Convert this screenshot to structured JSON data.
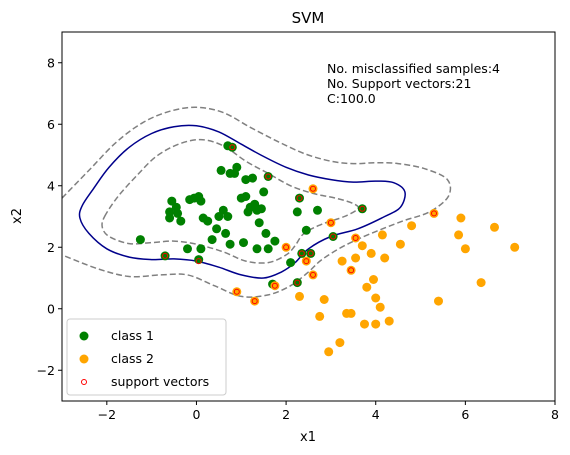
{
  "chart_data": {
    "type": "scatter",
    "title": "SVM",
    "xlabel": "x1",
    "ylabel": "x2",
    "xlim": [
      -3,
      8
    ],
    "ylim": [
      -3,
      9
    ],
    "xticks": [
      -2,
      0,
      2,
      4,
      6,
      8
    ],
    "yticks": [
      -2,
      0,
      2,
      4,
      6,
      8
    ],
    "grid": false,
    "legend": {
      "placement": "lower-left",
      "entries": [
        "class 1",
        "class 2",
        "support vectors"
      ]
    },
    "annotation": [
      "No. misclassified samples:4",
      "No. Support vectors:21",
      "C:100.0"
    ],
    "colors": {
      "class1": "#008000",
      "class2": "#FFA500",
      "support": "#FF0000",
      "boundary": "#00008B",
      "margin": "#808080"
    },
    "series": [
      {
        "name": "class 1",
        "points": [
          [
            -1.25,
            2.25
          ],
          [
            -0.7,
            1.72
          ],
          [
            -0.6,
            3.15
          ],
          [
            -0.6,
            2.95
          ],
          [
            -0.55,
            3.5
          ],
          [
            -0.45,
            3.3
          ],
          [
            -0.42,
            3.1
          ],
          [
            -0.35,
            2.85
          ],
          [
            -0.2,
            1.95
          ],
          [
            -0.15,
            3.55
          ],
          [
            -0.05,
            3.6
          ],
          [
            0.05,
            3.65
          ],
          [
            0.1,
            3.5
          ],
          [
            0.05,
            1.6
          ],
          [
            0.1,
            1.95
          ],
          [
            0.15,
            2.95
          ],
          [
            0.25,
            2.85
          ],
          [
            0.35,
            2.25
          ],
          [
            0.45,
            2.6
          ],
          [
            0.5,
            3.0
          ],
          [
            0.55,
            4.5
          ],
          [
            0.6,
            3.2
          ],
          [
            0.65,
            2.45
          ],
          [
            0.7,
            3.0
          ],
          [
            0.75,
            4.4
          ],
          [
            0.7,
            5.3
          ],
          [
            0.8,
            5.25
          ],
          [
            0.85,
            4.4
          ],
          [
            0.75,
            2.1
          ],
          [
            0.9,
            4.6
          ],
          [
            1.0,
            3.6
          ],
          [
            1.05,
            2.15
          ],
          [
            1.1,
            3.65
          ],
          [
            1.15,
            3.15
          ],
          [
            1.2,
            3.3
          ],
          [
            1.25,
            4.25
          ],
          [
            1.3,
            3.4
          ],
          [
            1.35,
            3.2
          ],
          [
            1.35,
            1.95
          ],
          [
            1.4,
            2.8
          ],
          [
            1.45,
            3.25
          ],
          [
            1.5,
            3.8
          ],
          [
            1.55,
            2.45
          ],
          [
            1.6,
            4.3
          ],
          [
            1.7,
            0.8
          ],
          [
            1.75,
            2.2
          ],
          [
            2.1,
            1.5
          ],
          [
            2.25,
            3.15
          ],
          [
            2.3,
            3.6
          ],
          [
            2.25,
            0.85
          ],
          [
            2.35,
            1.8
          ],
          [
            2.45,
            2.55
          ],
          [
            2.55,
            1.8
          ],
          [
            2.7,
            3.2
          ],
          [
            3.05,
            2.35
          ],
          [
            3.7,
            3.25
          ],
          [
            1.1,
            4.2
          ],
          [
            1.6,
            1.95
          ]
        ]
      },
      {
        "name": "class 2",
        "points": [
          [
            0.9,
            0.55
          ],
          [
            1.3,
            0.25
          ],
          [
            1.75,
            0.75
          ],
          [
            2.0,
            2.0
          ],
          [
            2.3,
            0.4
          ],
          [
            2.45,
            1.55
          ],
          [
            2.6,
            1.1
          ],
          [
            2.6,
            3.9
          ],
          [
            2.75,
            -0.25
          ],
          [
            2.85,
            0.3
          ],
          [
            2.95,
            -1.4
          ],
          [
            3.0,
            2.8
          ],
          [
            3.2,
            -1.1
          ],
          [
            3.25,
            1.55
          ],
          [
            3.35,
            -0.15
          ],
          [
            3.45,
            1.25
          ],
          [
            3.45,
            -0.15
          ],
          [
            3.55,
            2.3
          ],
          [
            3.55,
            1.65
          ],
          [
            3.7,
            2.05
          ],
          [
            3.75,
            -0.5
          ],
          [
            3.8,
            0.7
          ],
          [
            3.9,
            1.8
          ],
          [
            3.95,
            0.95
          ],
          [
            4.0,
            0.35
          ],
          [
            4.0,
            -0.5
          ],
          [
            4.1,
            0.05
          ],
          [
            4.15,
            2.4
          ],
          [
            4.2,
            1.65
          ],
          [
            4.3,
            -0.4
          ],
          [
            4.55,
            2.1
          ],
          [
            4.8,
            2.7
          ],
          [
            5.3,
            3.1
          ],
          [
            5.4,
            0.25
          ],
          [
            5.85,
            2.4
          ],
          [
            5.9,
            2.95
          ],
          [
            6.0,
            1.95
          ],
          [
            6.35,
            0.85
          ],
          [
            6.65,
            2.65
          ],
          [
            7.1,
            2.0
          ]
        ]
      },
      {
        "name": "support vectors",
        "points": [
          [
            -0.7,
            1.72
          ],
          [
            0.05,
            1.55
          ],
          [
            0.8,
            5.25
          ],
          [
            0.9,
            0.55
          ],
          [
            1.3,
            0.25
          ],
          [
            1.6,
            4.3
          ],
          [
            1.75,
            0.75
          ],
          [
            2.0,
            2.0
          ],
          [
            2.25,
            0.85
          ],
          [
            2.35,
            1.8
          ],
          [
            2.3,
            3.6
          ],
          [
            2.45,
            1.55
          ],
          [
            2.55,
            1.8
          ],
          [
            2.6,
            1.1
          ],
          [
            2.6,
            3.9
          ],
          [
            3.0,
            2.8
          ],
          [
            3.05,
            2.35
          ],
          [
            3.55,
            2.3
          ],
          [
            3.7,
            3.25
          ],
          [
            5.3,
            3.1
          ],
          [
            3.45,
            1.25
          ]
        ]
      }
    ],
    "decision_boundary": [
      [
        -2.55,
        3.35
      ],
      [
        -2.3,
        3.9
      ],
      [
        -1.95,
        4.6
      ],
      [
        -1.5,
        5.25
      ],
      [
        -1.0,
        5.7
      ],
      [
        -0.5,
        5.92
      ],
      [
        0.0,
        5.95
      ],
      [
        0.5,
        5.75
      ],
      [
        1.0,
        5.35
      ],
      [
        1.5,
        4.95
      ],
      [
        2.0,
        4.6
      ],
      [
        2.5,
        4.35
      ],
      [
        3.0,
        4.2
      ],
      [
        3.5,
        4.12
      ],
      [
        4.0,
        4.15
      ],
      [
        4.4,
        4.1
      ],
      [
        4.65,
        3.8
      ],
      [
        4.55,
        3.3
      ],
      [
        4.2,
        3.0
      ],
      [
        3.6,
        2.6
      ],
      [
        3.0,
        2.35
      ],
      [
        2.5,
        1.95
      ],
      [
        2.2,
        1.5
      ],
      [
        1.9,
        1.2
      ],
      [
        1.5,
        1.0
      ],
      [
        1.0,
        1.1
      ],
      [
        0.5,
        1.35
      ],
      [
        0.0,
        1.55
      ],
      [
        -0.5,
        1.62
      ],
      [
        -1.0,
        1.6
      ],
      [
        -1.5,
        1.68
      ],
      [
        -2.0,
        1.95
      ],
      [
        -2.4,
        2.45
      ],
      [
        -2.6,
        2.95
      ],
      [
        -2.55,
        3.35
      ]
    ],
    "margin_outer": [
      [
        -3.0,
        3.6
      ],
      [
        -2.4,
        4.5
      ],
      [
        -1.8,
        5.4
      ],
      [
        -1.2,
        6.05
      ],
      [
        -0.6,
        6.42
      ],
      [
        0.0,
        6.55
      ],
      [
        0.6,
        6.38
      ],
      [
        1.2,
        5.9
      ],
      [
        1.8,
        5.45
      ],
      [
        2.4,
        5.05
      ],
      [
        3.0,
        4.8
      ],
      [
        3.5,
        4.72
      ],
      [
        4.0,
        4.75
      ],
      [
        4.5,
        4.72
      ],
      [
        5.1,
        4.55
      ],
      [
        5.6,
        4.2
      ],
      [
        5.62,
        3.65
      ],
      [
        5.2,
        3.15
      ],
      [
        4.6,
        2.85
      ],
      [
        3.9,
        2.45
      ],
      [
        3.3,
        2.05
      ],
      [
        2.8,
        1.6
      ],
      [
        2.5,
        1.2
      ],
      [
        2.1,
        0.75
      ],
      [
        1.6,
        0.45
      ],
      [
        1.0,
        0.4
      ],
      [
        0.4,
        0.75
      ],
      [
        -0.2,
        1.1
      ],
      [
        -0.8,
        1.1
      ],
      [
        -1.5,
        1.05
      ],
      [
        -2.2,
        1.3
      ],
      [
        -3.0,
        1.75
      ]
    ],
    "margin_inner": [
      [
        -2.05,
        3.0
      ],
      [
        -1.75,
        3.65
      ],
      [
        -1.35,
        4.3
      ],
      [
        -0.9,
        4.95
      ],
      [
        -0.4,
        5.35
      ],
      [
        0.1,
        5.5
      ],
      [
        0.6,
        5.3
      ],
      [
        1.1,
        4.8
      ],
      [
        1.6,
        4.4
      ],
      [
        2.1,
        4.0
      ],
      [
        2.6,
        3.75
      ],
      [
        3.1,
        3.6
      ],
      [
        3.5,
        3.42
      ],
      [
        3.6,
        3.25
      ],
      [
        3.3,
        3.0
      ],
      [
        2.8,
        2.75
      ],
      [
        2.4,
        2.45
      ],
      [
        2.2,
        2.05
      ],
      [
        2.0,
        1.75
      ],
      [
        1.6,
        1.5
      ],
      [
        1.1,
        1.55
      ],
      [
        0.6,
        1.85
      ],
      [
        0.0,
        2.1
      ],
      [
        -0.5,
        2.2
      ],
      [
        -1.0,
        2.15
      ],
      [
        -1.5,
        2.12
      ],
      [
        -1.95,
        2.35
      ],
      [
        -2.1,
        2.65
      ],
      [
        -2.05,
        3.0
      ]
    ]
  }
}
